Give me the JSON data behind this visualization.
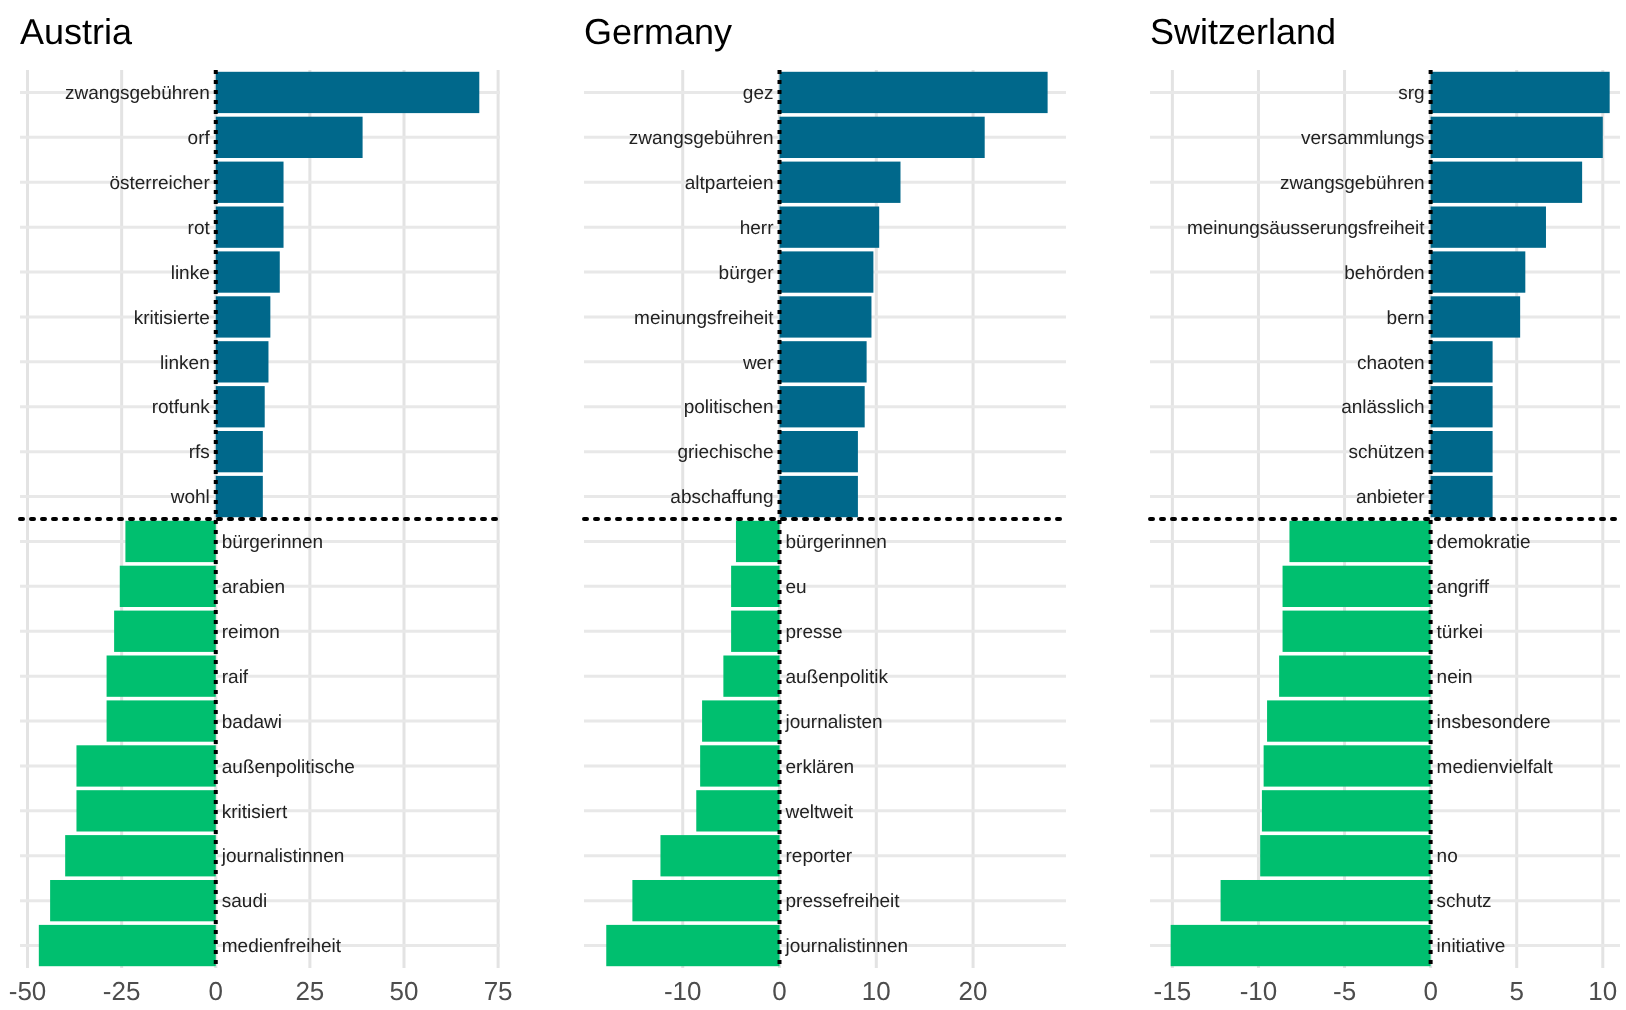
{
  "chart_data": [
    {
      "type": "bar",
      "orientation": "horizontal",
      "title": "Austria",
      "categories": [
        "zwangsgebühren",
        "orf",
        "österreicher",
        "rot",
        "linke",
        "kritisierte",
        "linken",
        "rotfunk",
        "rfs",
        "wohl",
        "bürgerinnen",
        "arabien",
        "reimon",
        "raif",
        "badawi",
        "außenpolitische",
        "kritisiert",
        "journalistinnen",
        "saudi",
        "medienfreiheit"
      ],
      "values": [
        70,
        39,
        18,
        18,
        17,
        14.5,
        14,
        13,
        12.5,
        12.5,
        -24,
        -25.5,
        -27,
        -29,
        -29,
        -37,
        -37,
        -40,
        -44,
        -47
      ],
      "colors": [
        "#00688b",
        "#00688b",
        "#00688b",
        "#00688b",
        "#00688b",
        "#00688b",
        "#00688b",
        "#00688b",
        "#00688b",
        "#00688b",
        "#00bf6f",
        "#00bf6f",
        "#00bf6f",
        "#00bf6f",
        "#00bf6f",
        "#00bf6f",
        "#00bf6f",
        "#00bf6f",
        "#00bf6f",
        "#00bf6f"
      ],
      "xlim": [
        -52,
        75.5
      ],
      "xticks": [
        -50,
        -25,
        0,
        25,
        50,
        75
      ],
      "grid": true
    },
    {
      "type": "bar",
      "orientation": "horizontal",
      "title": "Germany",
      "categories": [
        "gez",
        "zwangsgebühren",
        "altparteien",
        "herr",
        "bürger",
        "meinungsfreiheit",
        "wer",
        "politischen",
        "griechische",
        "abschaffung",
        "bürgerinnen",
        "eu",
        "presse",
        "außenpolitik",
        "journalisten",
        "erklären",
        "weltweit",
        "reporter",
        "pressefreiheit",
        "journalistinnen"
      ],
      "values": [
        27.7,
        21.2,
        12.5,
        10.3,
        9.7,
        9.5,
        9,
        8.8,
        8.1,
        8.1,
        -4.5,
        -5,
        -5,
        -5.8,
        -8,
        -8.2,
        -8.6,
        -12.3,
        -15.2,
        -17.9
      ],
      "colors": [
        "#00688b",
        "#00688b",
        "#00688b",
        "#00688b",
        "#00688b",
        "#00688b",
        "#00688b",
        "#00688b",
        "#00688b",
        "#00688b",
        "#00bf6f",
        "#00bf6f",
        "#00bf6f",
        "#00bf6f",
        "#00bf6f",
        "#00bf6f",
        "#00bf6f",
        "#00bf6f",
        "#00bf6f",
        "#00bf6f"
      ],
      "xlim": [
        -20.2,
        29.6
      ],
      "xticks": [
        -10,
        0,
        10,
        20
      ],
      "grid": true
    },
    {
      "type": "bar",
      "orientation": "horizontal",
      "title": "Switzerland",
      "categories": [
        "srg",
        "versammlungs",
        "zwangsgebühren",
        "meinungsäusserungsfreiheit",
        "behörden",
        "bern",
        "chaoten",
        "anlässlich",
        "schützen",
        "anbieter",
        "demokratie",
        "angriff",
        "türkei",
        "nein",
        "insbesondere",
        "medienvielfalt",
        null,
        "no",
        "schutz",
        "initiative"
      ],
      "values": [
        10.4,
        10,
        8.8,
        6.7,
        5.5,
        5.2,
        3.6,
        3.6,
        3.6,
        3.6,
        -8.2,
        -8.6,
        -8.6,
        -8.8,
        -9.5,
        -9.7,
        -9.8,
        -9.9,
        -12.2,
        -15.1
      ],
      "colors": [
        "#00688b",
        "#00688b",
        "#00688b",
        "#00688b",
        "#00688b",
        "#00688b",
        "#00688b",
        "#00688b",
        "#00688b",
        "#00688b",
        "#00bf6f",
        "#00bf6f",
        "#00bf6f",
        "#00bf6f",
        "#00bf6f",
        "#00bf6f",
        "#00bf6f",
        "#00bf6f",
        "#00bf6f",
        "#00bf6f"
      ],
      "xlim": [
        -16.3,
        11
      ],
      "xticks": [
        -15,
        -10,
        -5,
        0,
        5,
        10
      ],
      "grid": true
    }
  ]
}
